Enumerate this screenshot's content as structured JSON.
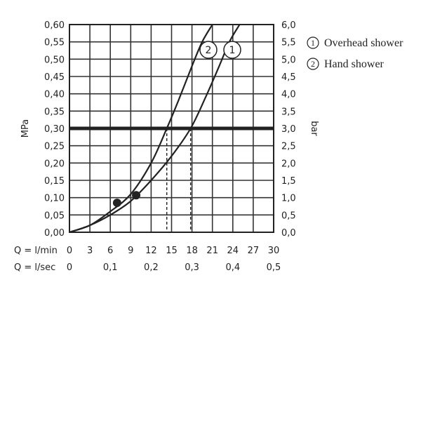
{
  "chart_data": {
    "type": "line",
    "y_left": {
      "label": "MPa",
      "ylim": [
        0,
        0.6
      ],
      "ticks": [
        "0,00",
        "0,05",
        "0,10",
        "0,15",
        "0,20",
        "0,25",
        "0,30",
        "0,35",
        "0,40",
        "0,45",
        "0,50",
        "0,55",
        "0,60"
      ]
    },
    "y_right": {
      "label": "bar",
      "ticks": [
        "0,0",
        "0,5",
        "1,0",
        "1,5",
        "2,0",
        "2,5",
        "3,0",
        "3,5",
        "4,0",
        "4,5",
        "5,0",
        "5,5",
        "6,0"
      ]
    },
    "x_rows": [
      {
        "label": "Q = l/min",
        "ticks": [
          "0",
          "3",
          "6",
          "9",
          "12",
          "15",
          "18",
          "21",
          "24",
          "27",
          "30"
        ]
      },
      {
        "label": "Q = l/sec",
        "ticks": [
          "0",
          "0,1",
          "0,2",
          "0,3",
          "0,4",
          "0,5"
        ]
      }
    ],
    "xlim": [
      0,
      30
    ],
    "reference_line": {
      "y": 0.3
    },
    "series": [
      {
        "name": "Hand shower",
        "marker": "2",
        "x": [
          0,
          3,
          6,
          9,
          12,
          14.3,
          16,
          18,
          19.5,
          21
        ],
        "y": [
          0,
          0.02,
          0.06,
          0.11,
          0.2,
          0.3,
          0.38,
          0.48,
          0.55,
          0.6
        ],
        "point": {
          "x": 7.0,
          "y": 0.085
        },
        "ref_x": 14.3
      },
      {
        "name": "Overhead shower",
        "marker": "1",
        "x": [
          0,
          3,
          6,
          9,
          12,
          15,
          17.8,
          20,
          22,
          23.5,
          25
        ],
        "y": [
          0,
          0.02,
          0.05,
          0.09,
          0.15,
          0.22,
          0.3,
          0.39,
          0.48,
          0.55,
          0.6
        ],
        "point": {
          "x": 9.8,
          "y": 0.107
        },
        "ref_x": 17.8
      }
    ],
    "legend": [
      {
        "num": "1",
        "label": "Overhead shower"
      },
      {
        "num": "2",
        "label": "Hand shower"
      }
    ],
    "legend_position": "top-right",
    "grid": true
  }
}
